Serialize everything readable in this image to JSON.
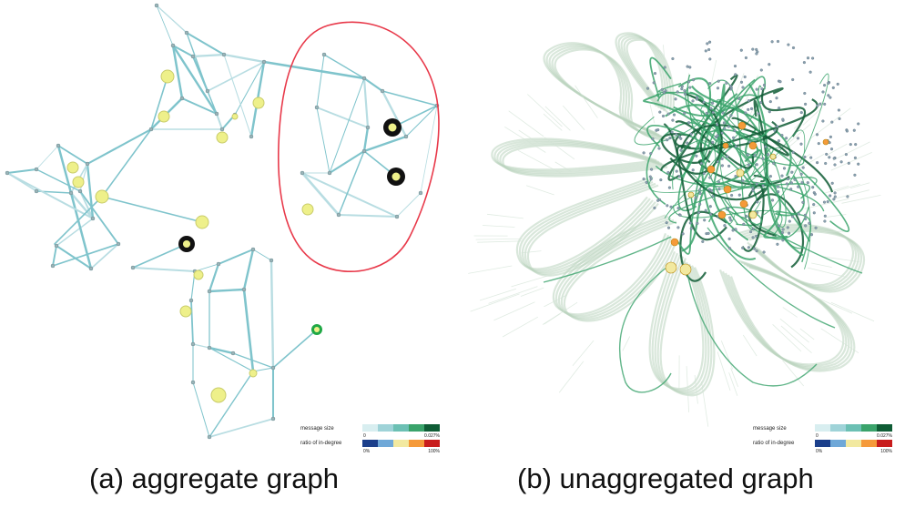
{
  "panels": [
    {
      "caption": "(a) aggregate graph",
      "legend": {
        "row1_label": "message size",
        "row2_label": "ratio of in-degree",
        "row1_left": "0",
        "row1_right": "0.027%",
        "row2_left": "0%",
        "row2_right": "100%"
      }
    },
    {
      "caption": "(b) unaggregated graph",
      "legend": {
        "row1_label": "message size",
        "row2_label": "ratio of in-degree",
        "row1_left": "0",
        "row1_right": "0.027%",
        "row2_left": "0%",
        "row2_right": "100%"
      }
    }
  ],
  "colors": {
    "edge_teal": "#7fc4cc",
    "edge_light": "#b8dde2",
    "edge_green": "#3aa36b",
    "edge_dark_green": "#0f5c35",
    "node_yellow": "#eef08a",
    "node_black": "#111111",
    "highlight_red": "#e8394a",
    "faded_cluster": "#b9d3be",
    "message_scale": [
      "#d8eef0",
      "#9fd3d8",
      "#6cc0b4",
      "#3aa36b",
      "#0f5c35"
    ],
    "indegree_scale": [
      "#1b3f8b",
      "#6fa8d8",
      "#f2e9a0",
      "#f59a3a",
      "#c81c1c"
    ]
  }
}
